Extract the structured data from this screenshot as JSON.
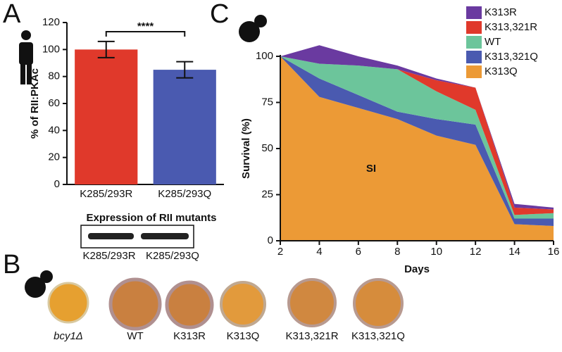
{
  "chart_data": [
    {
      "type": "bar",
      "y_label": "% of RII:PKAc",
      "categories": [
        "K285/293R",
        "K285/293Q"
      ],
      "values": [
        100,
        85
      ],
      "errors": [
        6,
        6
      ],
      "colors": [
        "#e0392b",
        "#4a5ab0"
      ],
      "ylim": [
        0,
        120
      ],
      "yticks": [
        0,
        20,
        40,
        60,
        80,
        100,
        120
      ],
      "annotation": "****"
    },
    {
      "type": "stacked_area",
      "x_label": "Days",
      "y_label": "Survival (%)",
      "x": [
        2,
        4,
        6,
        8,
        10,
        12,
        14,
        16
      ],
      "series": [
        {
          "name": "K313Q",
          "color": "#ec9a36",
          "values": [
            100,
            78,
            72,
            66,
            57,
            52,
            9,
            8
          ]
        },
        {
          "name": "K313,321Q",
          "color": "#4a5ab0",
          "values": [
            0,
            10,
            7,
            4,
            9,
            11,
            3,
            4
          ]
        },
        {
          "name": "WT",
          "color": "#6cc59b",
          "values": [
            0,
            8,
            16,
            23,
            15,
            8,
            2,
            3
          ]
        },
        {
          "name": "K313,321R",
          "color": "#e0392b",
          "values": [
            0,
            0,
            0,
            0,
            6,
            12,
            4,
            2
          ]
        },
        {
          "name": "K313R",
          "color": "#6a3aa0",
          "values": [
            0,
            10,
            5,
            2,
            1,
            0,
            2,
            1
          ]
        }
      ],
      "xlim": [
        2,
        16
      ],
      "xticks": [
        2,
        4,
        6,
        8,
        10,
        12,
        14,
        16
      ],
      "ylim": [
        0,
        110
      ],
      "yticks": [
        0,
        25,
        50,
        75,
        100
      ],
      "legend": "upper right",
      "annotation": "SI"
    }
  ],
  "panels": {
    "a": "A",
    "b": "B",
    "c": "C",
    "blot": {
      "title": "Expression of RII mutants",
      "lanes": [
        "K285/293R",
        "K285/293Q"
      ]
    },
    "plates": [
      "bcy1Δ",
      "WT",
      "K313R",
      "K313Q",
      "K313,321R",
      "K313,321Q"
    ]
  }
}
